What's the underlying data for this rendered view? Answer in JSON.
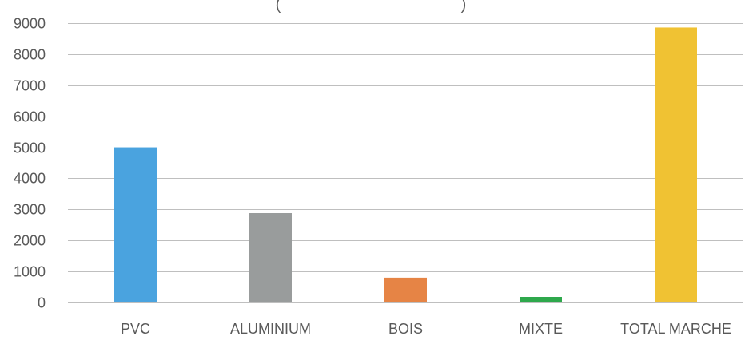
{
  "chart_data": {
    "type": "bar",
    "title_fragment": "(",
    "title_fragment_end": ")",
    "categories": [
      "PVC",
      "ALUMINIUM",
      "BOIS",
      "MIXTE",
      "TOTAL MARCHE"
    ],
    "values": [
      5000,
      2880,
      800,
      180,
      8860
    ],
    "colors": [
      "#4aa3df",
      "#999c9c",
      "#e68445",
      "#2ea84c",
      "#f0c233"
    ],
    "ylim": [
      0,
      9000
    ],
    "yticks": [
      0,
      1000,
      2000,
      3000,
      4000,
      5000,
      6000,
      7000,
      8000,
      9000
    ],
    "xlabel": "",
    "ylabel": "",
    "grid": true,
    "legend": "none"
  }
}
